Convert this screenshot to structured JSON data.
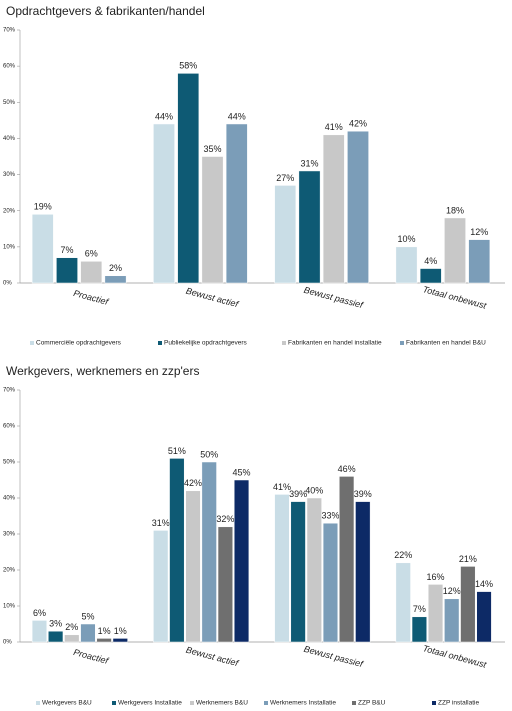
{
  "chart_data": [
    {
      "type": "bar",
      "title": "Opdrachtgevers & fabrikanten/handel",
      "categories": [
        "Proactief",
        "Bewust actief",
        "Bewust passief",
        "Totaal onbewust"
      ],
      "series": [
        {
          "name": "Commerciële opdrachtgevers",
          "color": "#c9dde6",
          "values": [
            19,
            44,
            27,
            10
          ],
          "value_labels": [
            "19%",
            "44%",
            "27%",
            "10%"
          ]
        },
        {
          "name": "Publiekelijke opdrachtgevers",
          "color": "#0e5a74",
          "values": [
            7,
            58,
            31,
            4
          ],
          "value_labels": [
            "7%",
            "58%",
            "31%",
            "4%"
          ]
        },
        {
          "name": "Fabrikanten en handel installatie",
          "color": "#c8c8c8",
          "values": [
            6,
            35,
            41,
            18
          ],
          "value_labels": [
            "6%",
            "35%",
            "41%",
            "18%"
          ]
        },
        {
          "name": "Fabrikanten en handel B&U",
          "color": "#7b9db8",
          "values": [
            2,
            44,
            42,
            12
          ],
          "value_labels": [
            "2%",
            "44%",
            "42%",
            "12%"
          ]
        }
      ],
      "ylim": [
        0,
        70
      ],
      "yticks": [
        {
          "value": 0,
          "label": "0%"
        },
        {
          "value": 10,
          "label": "10%"
        },
        {
          "value": 20,
          "label": "20%"
        },
        {
          "value": 30,
          "label": "30%"
        },
        {
          "value": 40,
          "label": "40%"
        },
        {
          "value": 50,
          "label": "50%"
        },
        {
          "value": 60,
          "label": "60%"
        },
        {
          "value": 70,
          "label": "70%"
        }
      ],
      "grid": false,
      "legend": "bottom"
    },
    {
      "type": "bar",
      "title": "Werkgevers, werknemers en zzp'ers",
      "categories": [
        "Proactief",
        "Bewust actief",
        "Bewust passief",
        "Totaal onbewust"
      ],
      "series": [
        {
          "name": "Werkgevers B&U",
          "color": "#c9dde6",
          "values": [
            6,
            31,
            41,
            22
          ],
          "value_labels": [
            "6%",
            "31%",
            "41%",
            "22%"
          ]
        },
        {
          "name": "Werkgevers Installatie",
          "color": "#0e5a74",
          "values": [
            3,
            51,
            39,
            7
          ],
          "value_labels": [
            "3%",
            "51%",
            "39%",
            "7%"
          ]
        },
        {
          "name": "Werknemers B&U",
          "color": "#c8c8c8",
          "values": [
            2,
            42,
            40,
            16
          ],
          "value_labels": [
            "2%",
            "42%",
            "40%",
            "16%"
          ]
        },
        {
          "name": "Werknemers Installatie",
          "color": "#7b9db8",
          "values": [
            5,
            50,
            33,
            12
          ],
          "value_labels": [
            "5%",
            "50%",
            "33%",
            "12%"
          ]
        },
        {
          "name": "ZZP B&U",
          "color": "#6f6f6f",
          "values": [
            1,
            32,
            46,
            21
          ],
          "value_labels": [
            "1%",
            "32%",
            "46%",
            "21%"
          ]
        },
        {
          "name": "ZZP installatie",
          "color": "#0d2a66",
          "values": [
            1,
            45,
            39,
            14
          ],
          "value_labels": [
            "1%",
            "45%",
            "39%",
            "14%"
          ]
        }
      ],
      "ylim": [
        0,
        70
      ],
      "yticks": [
        {
          "value": 0,
          "label": "0%"
        },
        {
          "value": 10,
          "label": "10%"
        },
        {
          "value": 20,
          "label": "20%"
        },
        {
          "value": 30,
          "label": "30%"
        },
        {
          "value": 40,
          "label": "40%"
        },
        {
          "value": 50,
          "label": "50%"
        },
        {
          "value": 60,
          "label": "60%"
        },
        {
          "value": 70,
          "label": "70%"
        }
      ],
      "grid": false,
      "legend": "bottom"
    }
  ]
}
